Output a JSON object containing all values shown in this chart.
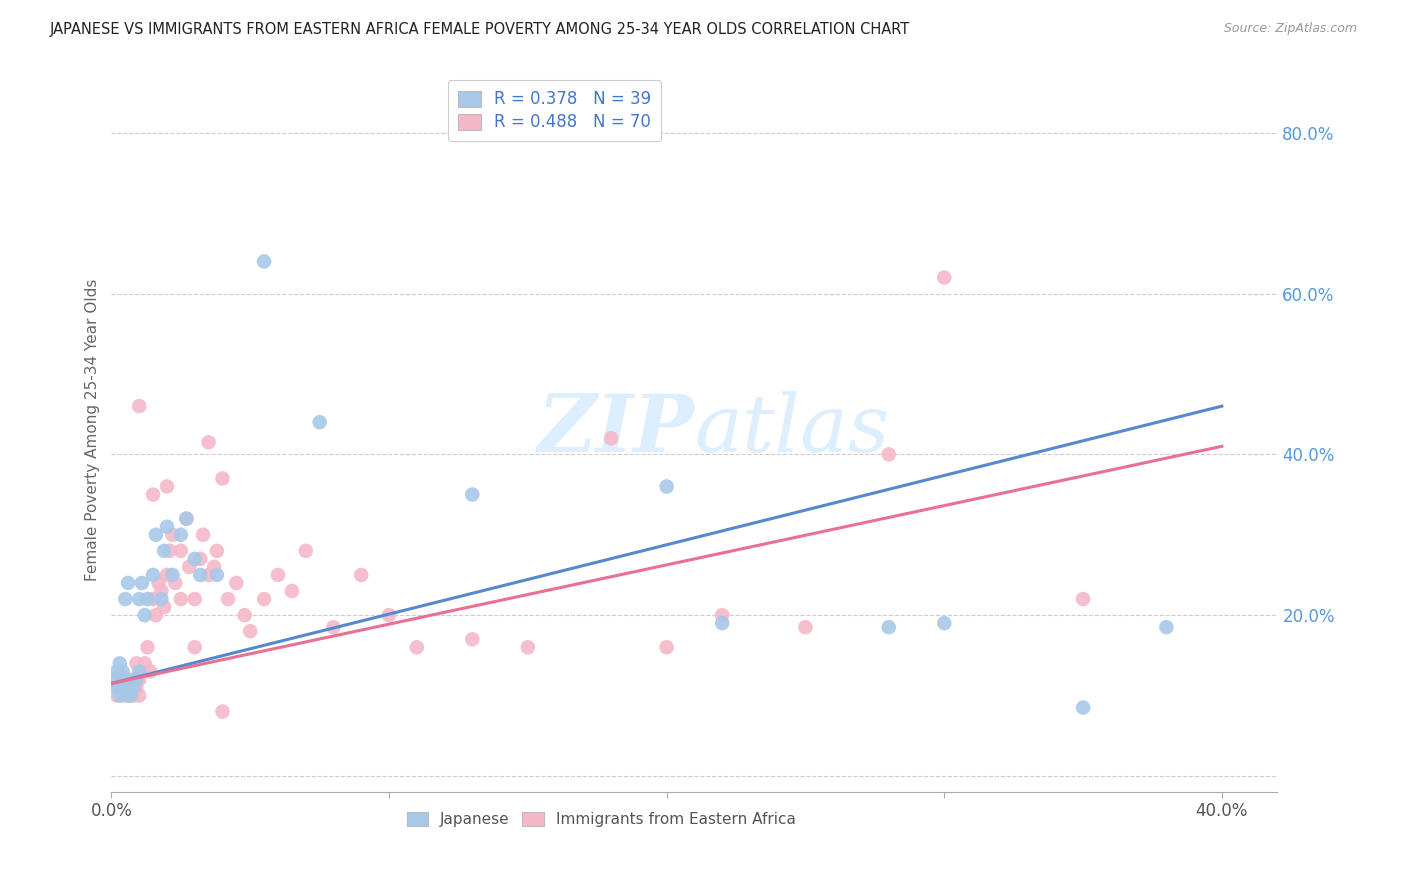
{
  "title": "JAPANESE VS IMMIGRANTS FROM EASTERN AFRICA FEMALE POVERTY AMONG 25-34 YEAR OLDS CORRELATION CHART",
  "source": "Source: ZipAtlas.com",
  "ylabel": "Female Poverty Among 25-34 Year Olds",
  "xlim": [
    0.0,
    0.42
  ],
  "ylim": [
    -0.02,
    0.88
  ],
  "xticks": [
    0.0,
    0.1,
    0.2,
    0.3,
    0.4
  ],
  "xticklabels": [
    "0.0%",
    "",
    "",
    "",
    "40.0%"
  ],
  "yticks_right": [
    0.2,
    0.4,
    0.6,
    0.8
  ],
  "yticklabels_right": [
    "20.0%",
    "40.0%",
    "60.0%",
    "80.0%"
  ],
  "legend_r1": "R = 0.378",
  "legend_n1": "N = 39",
  "legend_r2": "R = 0.488",
  "legend_n2": "N = 70",
  "color_blue": "#a8c8e8",
  "color_pink": "#f5b8c8",
  "line_color_blue": "#5588cc",
  "line_color_pink": "#e87090",
  "right_tick_color": "#5599dd",
  "legend_text_color": "#4477cc",
  "watermark_color": "#ddeeff",
  "blue_line_y0": 0.115,
  "blue_line_y1": 0.46,
  "pink_line_y0": 0.115,
  "pink_line_y1": 0.41,
  "japanese_x": [
    0.001,
    0.002,
    0.002,
    0.003,
    0.003,
    0.004,
    0.004,
    0.005,
    0.005,
    0.006,
    0.006,
    0.007,
    0.008,
    0.009,
    0.01,
    0.01,
    0.011,
    0.012,
    0.013,
    0.015,
    0.016,
    0.018,
    0.019,
    0.02,
    0.022,
    0.025,
    0.027,
    0.03,
    0.032,
    0.038,
    0.055,
    0.075,
    0.13,
    0.2,
    0.22,
    0.28,
    0.3,
    0.35,
    0.38
  ],
  "japanese_y": [
    0.12,
    0.11,
    0.13,
    0.1,
    0.14,
    0.11,
    0.13,
    0.12,
    0.22,
    0.1,
    0.24,
    0.1,
    0.11,
    0.12,
    0.13,
    0.22,
    0.24,
    0.2,
    0.22,
    0.25,
    0.3,
    0.22,
    0.28,
    0.31,
    0.25,
    0.3,
    0.32,
    0.27,
    0.25,
    0.25,
    0.64,
    0.44,
    0.35,
    0.36,
    0.19,
    0.185,
    0.19,
    0.085,
    0.185
  ],
  "africa_x": [
    0.001,
    0.002,
    0.002,
    0.003,
    0.003,
    0.004,
    0.004,
    0.005,
    0.005,
    0.006,
    0.006,
    0.007,
    0.007,
    0.008,
    0.008,
    0.009,
    0.009,
    0.01,
    0.01,
    0.011,
    0.012,
    0.013,
    0.014,
    0.015,
    0.016,
    0.017,
    0.018,
    0.019,
    0.02,
    0.021,
    0.022,
    0.023,
    0.025,
    0.027,
    0.028,
    0.03,
    0.032,
    0.033,
    0.035,
    0.037,
    0.038,
    0.04,
    0.042,
    0.045,
    0.048,
    0.05,
    0.055,
    0.06,
    0.065,
    0.07,
    0.08,
    0.09,
    0.1,
    0.11,
    0.13,
    0.15,
    0.18,
    0.2,
    0.22,
    0.25,
    0.01,
    0.015,
    0.02,
    0.025,
    0.03,
    0.035,
    0.04,
    0.28,
    0.3,
    0.35
  ],
  "africa_y": [
    0.115,
    0.1,
    0.12,
    0.1,
    0.11,
    0.115,
    0.12,
    0.1,
    0.115,
    0.11,
    0.12,
    0.1,
    0.115,
    0.1,
    0.12,
    0.11,
    0.14,
    0.1,
    0.12,
    0.13,
    0.14,
    0.16,
    0.13,
    0.22,
    0.2,
    0.24,
    0.23,
    0.21,
    0.25,
    0.28,
    0.3,
    0.24,
    0.28,
    0.32,
    0.26,
    0.22,
    0.27,
    0.3,
    0.25,
    0.26,
    0.28,
    0.37,
    0.22,
    0.24,
    0.2,
    0.18,
    0.22,
    0.25,
    0.23,
    0.28,
    0.185,
    0.25,
    0.2,
    0.16,
    0.17,
    0.16,
    0.42,
    0.16,
    0.2,
    0.185,
    0.46,
    0.35,
    0.36,
    0.22,
    0.16,
    0.415,
    0.08,
    0.4,
    0.62,
    0.22
  ]
}
